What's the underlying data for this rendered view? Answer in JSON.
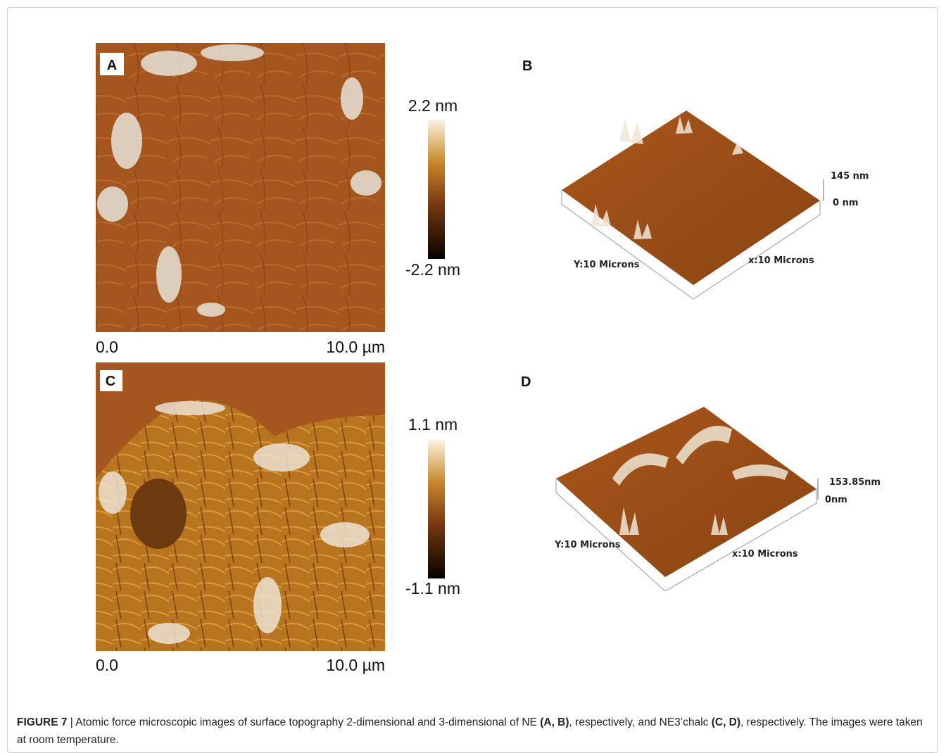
{
  "figure": {
    "panels": [
      {
        "label": "A",
        "colorbar_max": "2.2 nm",
        "colorbar_min": "-2.2 nm",
        "axis_start": "0.0",
        "axis_end": "10.0 µm"
      },
      {
        "label": "B",
        "z_max": "145 nm",
        "z_min": "0 nm",
        "y_axis": "Y:10 Microns",
        "x_axis": "x:10 Microns"
      },
      {
        "label": "C",
        "colorbar_max": "1.1 nm",
        "colorbar_min": "-1.1 nm",
        "axis_start": "0.0",
        "axis_end": "10.0 µm"
      },
      {
        "label": "D",
        "z_max": "153.85nm",
        "z_min": "0nm",
        "y_axis": "Y:10 Microns",
        "x_axis": "x:10 Microns"
      }
    ],
    "caption": {
      "figure_number": "FIGURE 7",
      "separator": " | ",
      "text_1": "Atomic force microscopic images of surface topography 2-dimensional and 3-dimensional of NE ",
      "ref_1": "(A, B)",
      "text_2": ", respectively, and NE3’chalc ",
      "ref_2": "(C, D)",
      "text_3": ", respectively. The images were taken at room temperature."
    }
  }
}
